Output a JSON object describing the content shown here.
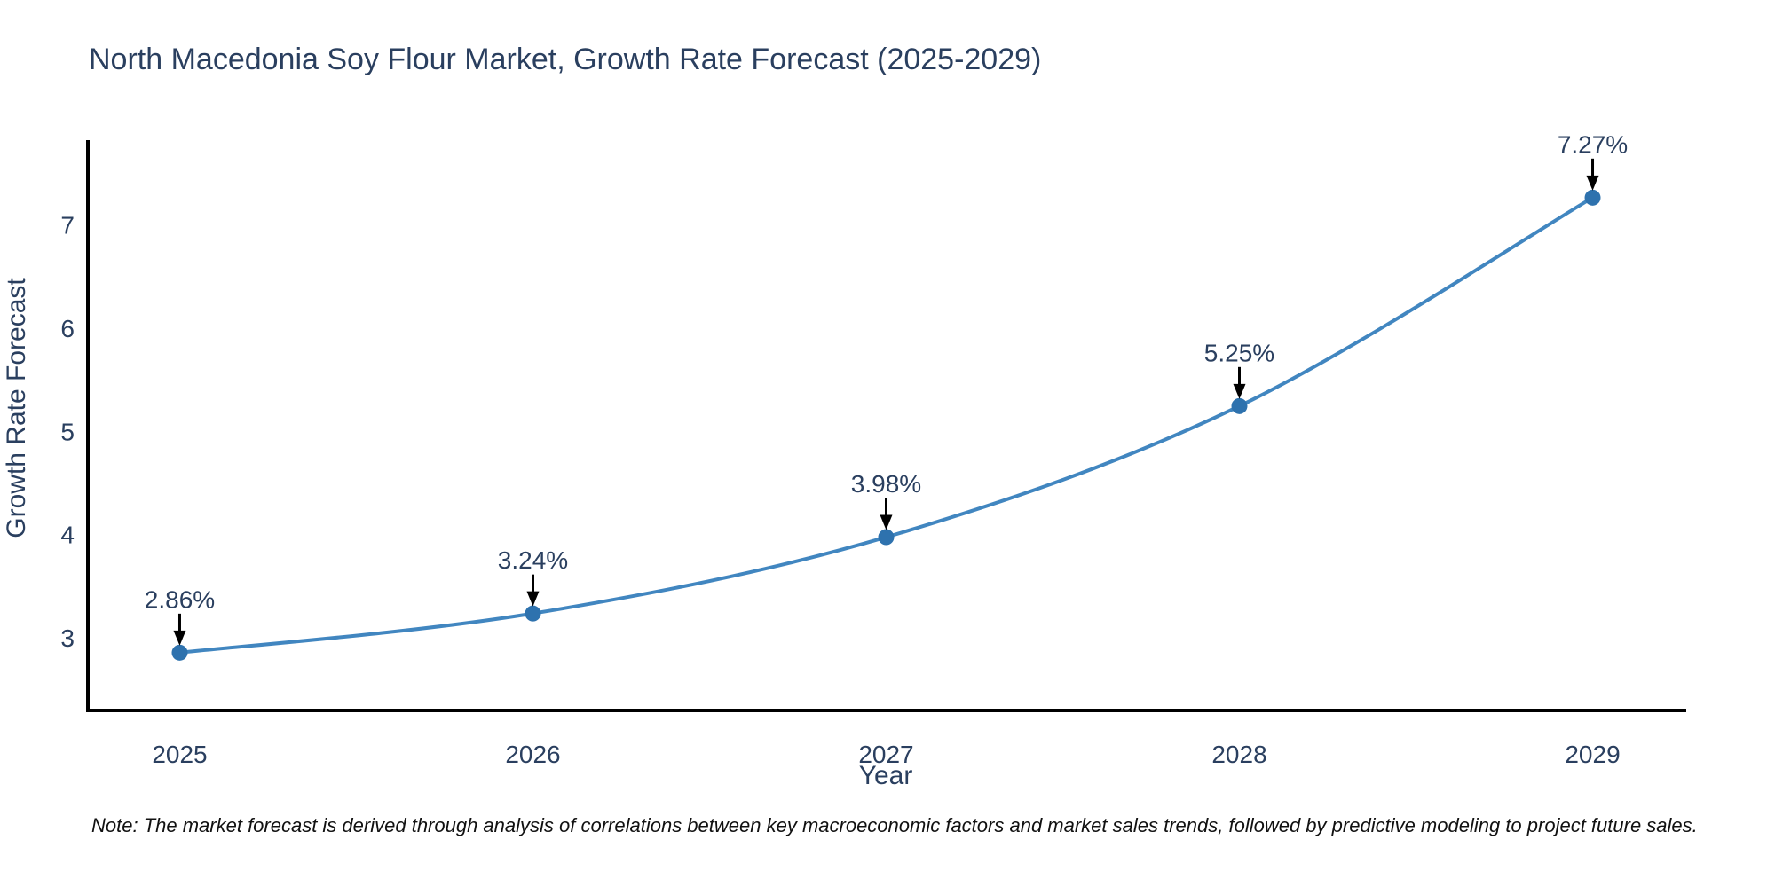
{
  "title": "North Macedonia Soy Flour Market, Growth Rate Forecast (2025-2029)",
  "note": "Note: The market forecast is derived through analysis of correlations between key macroeconomic factors and market sales trends, followed by predictive modeling to project future sales.",
  "chart_data": {
    "type": "line",
    "title": "North Macedonia Soy Flour Market, Growth Rate Forecast (2025-2029)",
    "xlabel": "Year",
    "ylabel": "Growth Rate Forecast",
    "x": [
      2025,
      2026,
      2027,
      2028,
      2029
    ],
    "values": [
      2.86,
      3.24,
      3.98,
      5.25,
      7.27
    ],
    "point_labels": [
      "2.86%",
      "3.24%",
      "3.98%",
      "5.25%",
      "7.27%"
    ],
    "x_tick_labels": [
      "2025",
      "2026",
      "2027",
      "2028",
      "2029"
    ],
    "y_ticks": [
      3,
      4,
      5,
      6,
      7
    ],
    "xlim": [
      2024.74,
      2029.26
    ],
    "ylim": [
      2.3,
      7.81
    ],
    "line_shape": "spline",
    "grid": false,
    "legend": "none",
    "marker_radius": 9,
    "line_width": 4,
    "colors": {
      "line": "#4186c0",
      "marker": "#2e72ae",
      "axis": "#000000",
      "text": "#2a3f5f",
      "arrow": "#000000",
      "note": "#111111",
      "background": "#ffffff"
    }
  }
}
